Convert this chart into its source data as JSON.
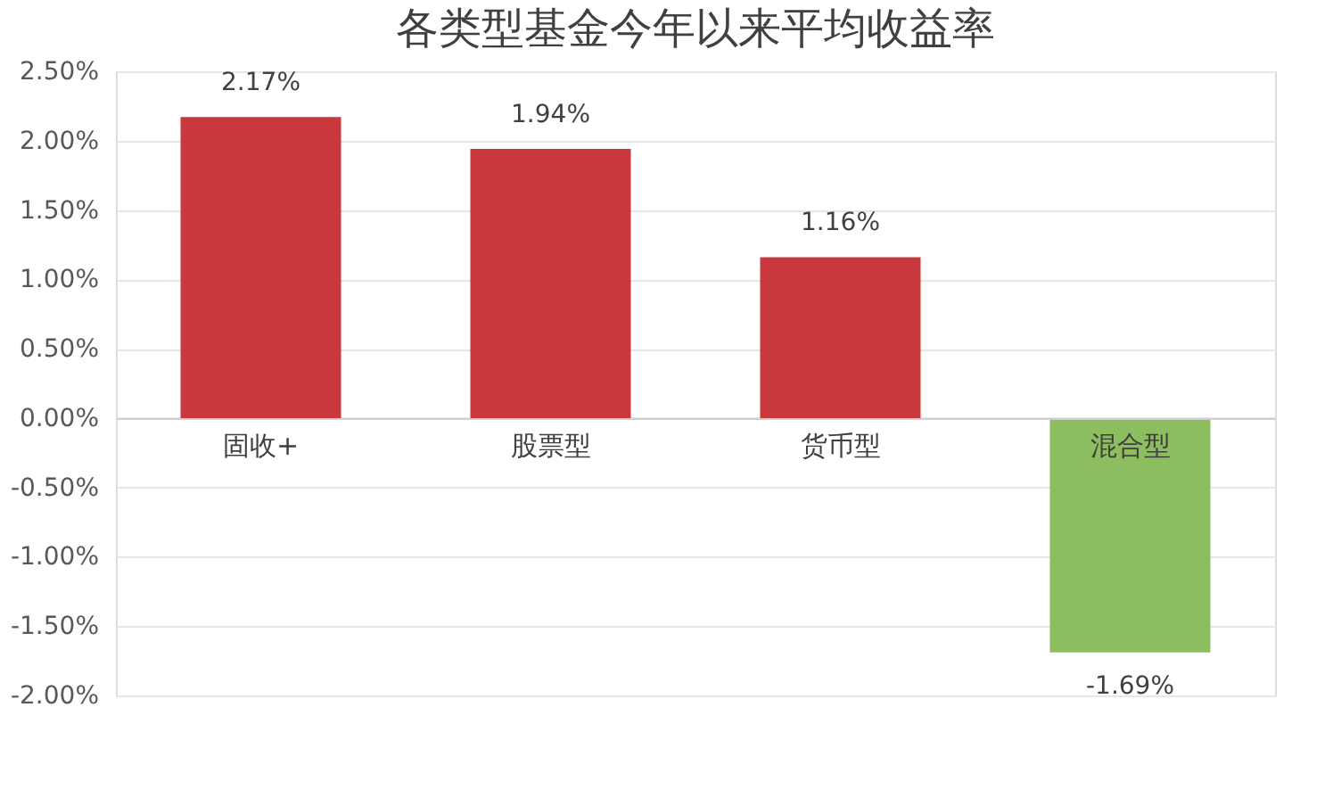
{
  "chart_data": {
    "type": "bar",
    "title": "各类型基金今年以来平均收益率",
    "categories": [
      "固收+",
      "股票型",
      "货币型",
      "混合型"
    ],
    "values": [
      2.17,
      1.94,
      1.16,
      -1.69
    ],
    "colors": [
      "#c9383c",
      "#c9383c",
      "#c9383c",
      "#8cbd5e"
    ],
    "value_labels": [
      "2.17%",
      "1.94%",
      "1.16%",
      "-1.69%"
    ],
    "ylim": [
      -2.0,
      2.5
    ],
    "yticks": [
      {
        "value": 2.5,
        "label": "2.50%"
      },
      {
        "value": 2.0,
        "label": "2.00%"
      },
      {
        "value": 1.5,
        "label": "1.50%"
      },
      {
        "value": 1.0,
        "label": "1.00%"
      },
      {
        "value": 0.5,
        "label": "0.50%"
      },
      {
        "value": 0,
        "label": "0.00%"
      },
      {
        "value": -0.5,
        "label": "-0.50%"
      },
      {
        "value": -1.0,
        "label": "-1.00%"
      },
      {
        "value": -1.5,
        "label": "-1.50%"
      },
      {
        "value": -2.0,
        "label": "-2.00%"
      }
    ],
    "grid": "y"
  }
}
